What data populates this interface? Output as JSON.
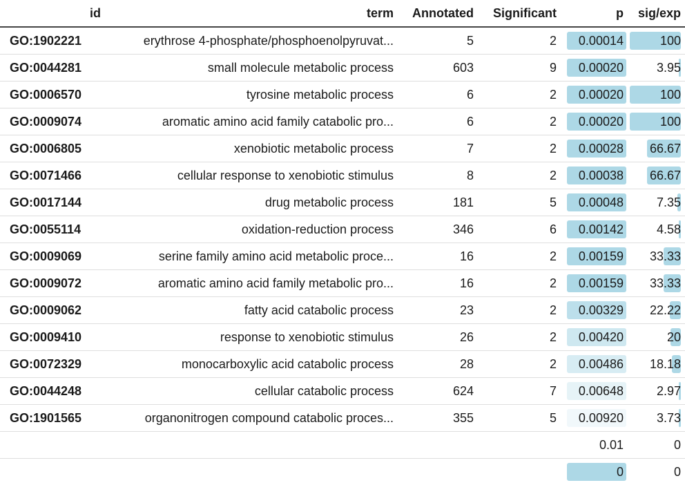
{
  "table": {
    "headers": [
      "id",
      "term",
      "Annotated",
      "Significant",
      "p",
      "sig/exp"
    ],
    "rows": [
      {
        "id": "GO:1902221",
        "term": "erythrose 4-phosphate/phosphoenolpyruvat...",
        "annotated": "5",
        "significant": "2",
        "p": "0.00014",
        "sig_exp": "100",
        "p_fill": 1.0,
        "p_shade": 1.0,
        "se_fill": 1.0
      },
      {
        "id": "GO:0044281",
        "term": "small molecule metabolic process",
        "annotated": "603",
        "significant": "9",
        "p": "0.00020",
        "sig_exp": "3.95",
        "p_fill": 1.0,
        "p_shade": 1.0,
        "se_fill": 0.04
      },
      {
        "id": "GO:0006570",
        "term": "tyrosine metabolic process",
        "annotated": "6",
        "significant": "2",
        "p": "0.00020",
        "sig_exp": "100",
        "p_fill": 1.0,
        "p_shade": 1.0,
        "se_fill": 1.0
      },
      {
        "id": "GO:0009074",
        "term": "aromatic amino acid family catabolic pro...",
        "annotated": "6",
        "significant": "2",
        "p": "0.00020",
        "sig_exp": "100",
        "p_fill": 1.0,
        "p_shade": 1.0,
        "se_fill": 1.0
      },
      {
        "id": "GO:0006805",
        "term": "xenobiotic metabolic process",
        "annotated": "7",
        "significant": "2",
        "p": "0.00028",
        "sig_exp": "66.67",
        "p_fill": 1.0,
        "p_shade": 1.0,
        "se_fill": 0.6667
      },
      {
        "id": "GO:0071466",
        "term": "cellular response to xenobiotic stimulus",
        "annotated": "8",
        "significant": "2",
        "p": "0.00038",
        "sig_exp": "66.67",
        "p_fill": 1.0,
        "p_shade": 1.0,
        "se_fill": 0.6667
      },
      {
        "id": "GO:0017144",
        "term": "drug metabolic process",
        "annotated": "181",
        "significant": "5",
        "p": "0.00048",
        "sig_exp": "7.35",
        "p_fill": 1.0,
        "p_shade": 1.0,
        "se_fill": 0.0735
      },
      {
        "id": "GO:0055114",
        "term": "oxidation-reduction process",
        "annotated": "346",
        "significant": "6",
        "p": "0.00142",
        "sig_exp": "4.58",
        "p_fill": 1.0,
        "p_shade": 1.0,
        "se_fill": 0.0458
      },
      {
        "id": "GO:0009069",
        "term": "serine family amino acid metabolic proce...",
        "annotated": "16",
        "significant": "2",
        "p": "0.00159",
        "sig_exp": "33.33",
        "p_fill": 1.0,
        "p_shade": 1.0,
        "se_fill": 0.3333
      },
      {
        "id": "GO:0009072",
        "term": "aromatic amino acid family metabolic pro...",
        "annotated": "16",
        "significant": "2",
        "p": "0.00159",
        "sig_exp": "33.33",
        "p_fill": 1.0,
        "p_shade": 1.0,
        "se_fill": 0.3333
      },
      {
        "id": "GO:0009062",
        "term": "fatty acid catabolic process",
        "annotated": "23",
        "significant": "2",
        "p": "0.00329",
        "sig_exp": "22.22",
        "p_fill": 1.0,
        "p_shade": 0.78,
        "se_fill": 0.2222
      },
      {
        "id": "GO:0009410",
        "term": "response to xenobiotic stimulus",
        "annotated": "26",
        "significant": "2",
        "p": "0.00420",
        "sig_exp": "20",
        "p_fill": 1.0,
        "p_shade": 0.55,
        "se_fill": 0.2
      },
      {
        "id": "GO:0072329",
        "term": "monocarboxylic acid catabolic process",
        "annotated": "28",
        "significant": "2",
        "p": "0.00486",
        "sig_exp": "18.18",
        "p_fill": 1.0,
        "p_shade": 0.42,
        "se_fill": 0.1818
      },
      {
        "id": "GO:0044248",
        "term": "cellular catabolic process",
        "annotated": "624",
        "significant": "7",
        "p": "0.00648",
        "sig_exp": "2.97",
        "p_fill": 1.0,
        "p_shade": 0.22,
        "se_fill": 0.03
      },
      {
        "id": "GO:1901565",
        "term": "organonitrogen compound catabolic proces...",
        "annotated": "355",
        "significant": "5",
        "p": "0.00920",
        "sig_exp": "3.73",
        "p_fill": 1.0,
        "p_shade": 0.06,
        "se_fill": 0.037
      },
      {
        "id": "",
        "term": "",
        "annotated": "",
        "significant": "",
        "p": "0.01",
        "sig_exp": "0",
        "p_fill": 0.0,
        "p_shade": 0.0,
        "se_fill": 0.0
      },
      {
        "id": "",
        "term": "",
        "annotated": "",
        "significant": "",
        "p": "0",
        "sig_exp": "0",
        "p_fill": 1.0,
        "p_shade": 1.0,
        "se_fill": 0.0
      }
    ]
  },
  "colors": {
    "bar": "#add8e6",
    "header_rule": "#444444",
    "row_rule": "#dedede"
  }
}
